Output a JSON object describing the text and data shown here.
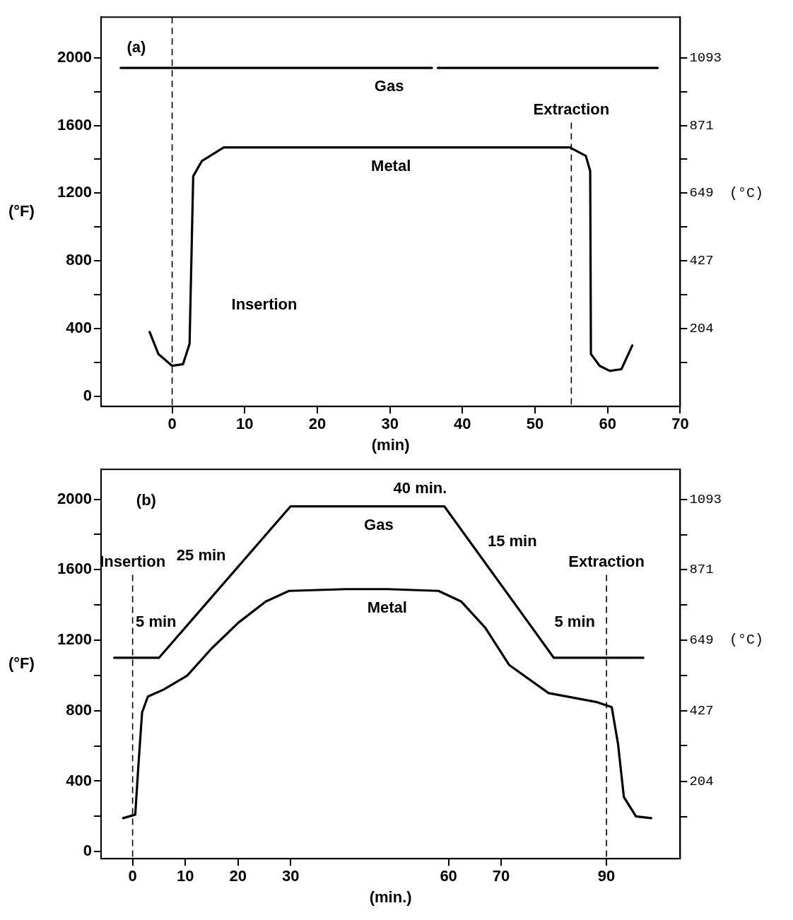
{
  "chart_data": [
    {
      "type": "line",
      "xlabel": "(min)",
      "ylabel": "(°F)",
      "y2label": "(°C)",
      "xlim": [
        -9.8,
        70
      ],
      "xticks": [
        0,
        10,
        20,
        30,
        40,
        50,
        60,
        70
      ],
      "ylim": [
        -60,
        2240
      ],
      "yticks": [
        0,
        {
          "value": 200,
          "label": null
        },
        400,
        {
          "value": 600,
          "label": null
        },
        800,
        {
          "value": 1000,
          "label": null
        },
        1200,
        {
          "value": 1400,
          "label": null
        },
        1600,
        {
          "value": 1800,
          "label": null
        },
        2000
      ],
      "y2lim": [
        -51.1,
        1226.7
      ],
      "y2ticks": [
        {
          "value": 93,
          "label": null
        },
        204,
        {
          "value": 316,
          "label": null
        },
        427,
        {
          "value": 538,
          "label": null
        },
        649,
        {
          "value": 760,
          "label": null
        },
        871,
        {
          "value": 982,
          "label": null
        },
        1093
      ],
      "series": [
        {
          "name": "Gas",
          "color": "#000000",
          "x": [
            -7.1,
            35.8,
            36.2,
            36.6,
            66.9
          ],
          "values": [
            1940,
            1940,
            null,
            1940,
            1940
          ]
        },
        {
          "name": "Metal",
          "color": "#000000",
          "x": [
            -3.1,
            -1.9,
            0,
            1.5,
            2.4,
            2.9,
            4.1,
            7.1,
            54.8,
            57,
            57.6,
            57.7,
            58.9,
            60.3,
            61.9,
            63.4
          ],
          "values": [
            380,
            250,
            180,
            190,
            310,
            1300,
            1390,
            1470,
            1470,
            1420,
            1330,
            250,
            180,
            150,
            160,
            300
          ]
        }
      ],
      "ref_lines": [
        {
          "axis": "x",
          "value": 0,
          "line_style": "dashed"
        },
        {
          "axis": "x",
          "value": 55,
          "label": "Extraction",
          "line_style": "dashed"
        }
      ],
      "annotations": [
        "(a)",
        "Insertion"
      ]
    },
    {
      "type": "line",
      "xlabel": "(min.)",
      "ylabel": "(°F)",
      "y2label": "(°C)",
      "xlim": [
        -6,
        104
      ],
      "xticks": [
        0,
        10,
        20,
        30,
        60,
        70,
        90
      ],
      "ylim": [
        -40,
        2170
      ],
      "yticks": [
        0,
        {
          "value": 200,
          "label": null
        },
        400,
        {
          "value": 600,
          "label": null
        },
        800,
        {
          "value": 1000,
          "label": null
        },
        1200,
        {
          "value": 1400,
          "label": null
        },
        1600,
        {
          "value": 1800,
          "label": null
        },
        2000
      ],
      "y2lim": [
        -40,
        1187.8
      ],
      "y2ticks": [
        {
          "value": 93,
          "label": null
        },
        204,
        {
          "value": 316,
          "label": null
        },
        427,
        {
          "value": 538,
          "label": null
        },
        649,
        {
          "value": 760,
          "label": null
        },
        871,
        {
          "value": 982,
          "label": null
        },
        1093
      ],
      "series": [
        {
          "name": "Gas",
          "color": "#000000",
          "x": [
            -3.5,
            5,
            30,
            40.7,
            48.5,
            59.2,
            80,
            97
          ],
          "values": [
            1100,
            1100,
            1960,
            1960,
            1960,
            1960,
            1100,
            1100
          ]
        },
        {
          "name": "Metal",
          "color": "#000000",
          "x": [
            -1.8,
            0.5,
            1.1,
            1.8,
            2.9,
            5.9,
            10.4,
            14.9,
            20.1,
            25.3,
            29.7,
            40.5,
            48.5,
            58.1,
            62.4,
            67,
            71.5,
            79,
            88,
            91,
            92.2,
            93.3,
            95.6,
            98.5
          ],
          "values": [
            190,
            210,
            490,
            790,
            880,
            920,
            1000,
            1150,
            1300,
            1420,
            1480,
            1490,
            1490,
            1480,
            1420,
            1270,
            1060,
            900,
            850,
            820,
            610,
            310,
            200,
            190
          ]
        }
      ],
      "ref_lines": [
        {
          "axis": "x",
          "value": 0,
          "label": "Insertion",
          "line_style": "dashed"
        },
        {
          "axis": "x",
          "value": 90,
          "label": "Extraction",
          "line_style": "dashed"
        }
      ],
      "annotations": [
        "(b)",
        "25 min",
        "40 min.",
        "15 min",
        "5 min",
        "5 min"
      ]
    }
  ]
}
